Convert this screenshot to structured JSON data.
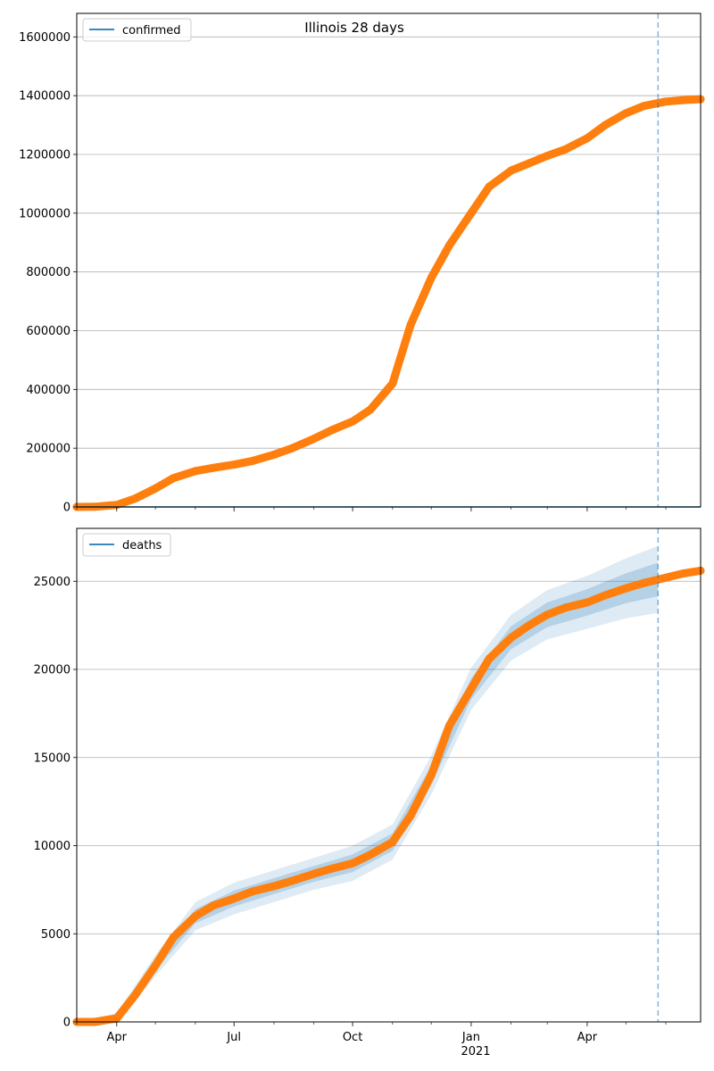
{
  "figure_title": "Illinois 28 days",
  "chart_data": [
    {
      "type": "line",
      "title": "",
      "xlabel": "",
      "ylabel": "",
      "legend": {
        "entries": [
          "confirmed"
        ],
        "placement": "top-left"
      },
      "grid": "horizontal",
      "ylim": [
        0,
        1680000
      ],
      "yticks": [
        0,
        200000,
        400000,
        600000,
        800000,
        1000000,
        1200000,
        1400000,
        1600000
      ],
      "ytick_labels": [
        "0",
        "200000",
        "400000",
        "600000",
        "800000",
        "1000000",
        "1200000",
        "1400000",
        "1600000"
      ],
      "forecast_start": "2021-05-26",
      "series": [
        {
          "name": "confirmed",
          "color": "#ff7f0e",
          "x": [
            "2020-03-01",
            "2020-03-15",
            "2020-04-01",
            "2020-04-15",
            "2020-05-01",
            "2020-05-15",
            "2020-06-01",
            "2020-06-15",
            "2020-07-01",
            "2020-07-15",
            "2020-08-01",
            "2020-08-15",
            "2020-09-01",
            "2020-09-15",
            "2020-10-01",
            "2020-10-15",
            "2020-11-01",
            "2020-11-15",
            "2020-12-01",
            "2020-12-15",
            "2021-01-01",
            "2021-01-15",
            "2021-02-01",
            "2021-02-15",
            "2021-03-01",
            "2021-03-15",
            "2021-04-01",
            "2021-04-15",
            "2021-05-01",
            "2021-05-15",
            "2021-06-01",
            "2021-06-15",
            "2021-06-28"
          ],
          "values": [
            0,
            500,
            7000,
            28000,
            63000,
            98000,
            122000,
            133000,
            144000,
            156000,
            178000,
            200000,
            232000,
            262000,
            291000,
            332000,
            420000,
            620000,
            780000,
            890000,
            1000000,
            1090000,
            1145000,
            1170000,
            1195000,
            1217000,
            1255000,
            1300000,
            1340000,
            1365000,
            1380000,
            1385000,
            1388000
          ]
        }
      ]
    },
    {
      "type": "line",
      "title": "",
      "xlabel": "",
      "ylabel": "",
      "legend": {
        "entries": [
          "deaths"
        ],
        "placement": "top-left"
      },
      "grid": "horizontal",
      "ylim": [
        0,
        28000
      ],
      "yticks": [
        0,
        5000,
        10000,
        15000,
        20000,
        25000
      ],
      "ytick_labels": [
        "0",
        "5000",
        "10000",
        "15000",
        "20000",
        "25000"
      ],
      "xticks": [
        "2020-04-01",
        "2020-07-01",
        "2020-10-01",
        "2021-01-01",
        "2021-04-01"
      ],
      "xtick_labels": [
        "Apr",
        "Jul",
        "Oct",
        "Jan",
        "Apr"
      ],
      "xtick_sublabel": "2021",
      "forecast_start": "2021-05-26",
      "series": [
        {
          "name": "deaths",
          "color": "#ff7f0e",
          "x": [
            "2020-03-01",
            "2020-03-15",
            "2020-04-01",
            "2020-04-15",
            "2020-05-01",
            "2020-05-15",
            "2020-06-01",
            "2020-06-15",
            "2020-07-01",
            "2020-07-15",
            "2020-08-01",
            "2020-08-15",
            "2020-09-01",
            "2020-09-15",
            "2020-10-01",
            "2020-10-15",
            "2020-11-01",
            "2020-11-15",
            "2020-12-01",
            "2020-12-15",
            "2021-01-01",
            "2021-01-15",
            "2021-02-01",
            "2021-02-15",
            "2021-03-01",
            "2021-03-15",
            "2021-04-01",
            "2021-04-15",
            "2021-05-01",
            "2021-05-15",
            "2021-06-01",
            "2021-06-15",
            "2021-06-28"
          ],
          "values": [
            0,
            0,
            200,
            1500,
            3200,
            4800,
            6000,
            6600,
            7000,
            7400,
            7700,
            8000,
            8400,
            8700,
            9000,
            9500,
            10200,
            11700,
            14000,
            16800,
            18900,
            20600,
            21800,
            22500,
            23100,
            23500,
            23800,
            24200,
            24600,
            24900,
            25200,
            25450,
            25600
          ]
        }
      ],
      "band": {
        "color": "#1f77b4",
        "x": [
          "2020-03-01",
          "2020-04-01",
          "2020-05-01",
          "2020-06-01",
          "2020-07-01",
          "2020-08-01",
          "2020-09-01",
          "2020-10-01",
          "2020-11-01",
          "2020-12-01",
          "2021-01-01",
          "2021-02-01",
          "2021-03-01",
          "2021-04-01",
          "2021-05-01",
          "2021-05-26"
        ],
        "center": [
          0,
          200,
          3200,
          6000,
          7000,
          7700,
          8400,
          9000,
          10200,
          14000,
          18900,
          21800,
          23100,
          23800,
          24600,
          25100
        ],
        "half_width_outer": [
          0,
          300,
          600,
          800,
          900,
          900,
          900,
          1000,
          1000,
          1100,
          1200,
          1300,
          1400,
          1500,
          1700,
          1900
        ],
        "half_width_inner": [
          0,
          150,
          300,
          400,
          450,
          450,
          450,
          500,
          500,
          550,
          600,
          650,
          700,
          750,
          850,
          950
        ]
      }
    }
  ]
}
